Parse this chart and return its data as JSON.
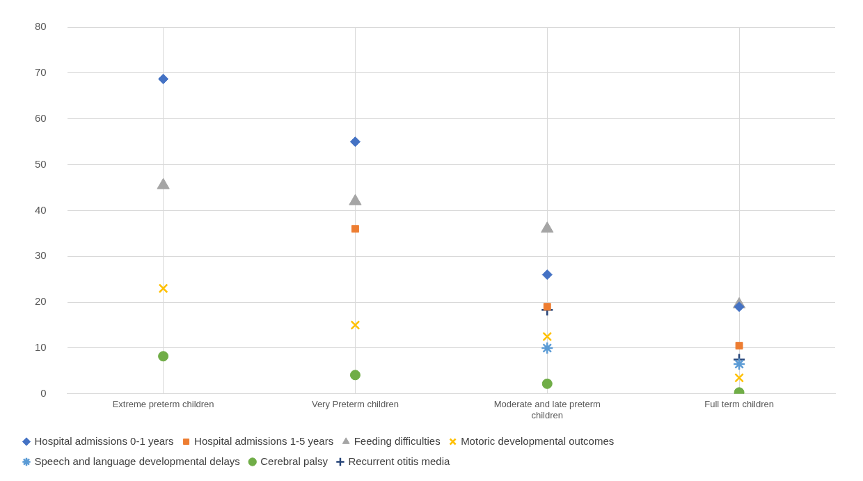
{
  "chart_data": {
    "type": "scatter",
    "categories": [
      "Extreme preterm children",
      "Very Preterm children",
      "Moderate and late preterm children",
      "Full term children"
    ],
    "series": [
      {
        "name": "Hospital admissions 0-1 years",
        "color": "#4472c4",
        "marker": "diamond",
        "values": [
          68.7,
          55,
          26,
          19
        ]
      },
      {
        "name": "Hospital admissions 1-5 years",
        "color": "#ed7d31",
        "marker": "square",
        "values": [
          null,
          36,
          19,
          10.5
        ]
      },
      {
        "name": "Feeding difficulties",
        "color": "#a5a5a5",
        "marker": "triangle",
        "values": [
          45.5,
          42,
          36,
          19.5
        ]
      },
      {
        "name": "Motoric developmental outcomes",
        "color": "#ffc000",
        "marker": "cross",
        "values": [
          23,
          15,
          12.5,
          3.5
        ]
      },
      {
        "name": "Speech and language developmental delays",
        "color": "#5b9bd5",
        "values": [
          null,
          null,
          10,
          6.5
        ]
      },
      {
        "name": "Cerebral palsy",
        "color": "#70ad47",
        "marker": "circle",
        "values": [
          8.2,
          4.1,
          2.2,
          0.3
        ]
      },
      {
        "name": "Recurrent otitis media",
        "color": "#264478",
        "marker": "plus",
        "values": [
          null,
          null,
          18.3,
          7.5
        ]
      }
    ],
    "ylim": [
      0,
      80
    ],
    "yticks": [
      0,
      10,
      20,
      30,
      40,
      50,
      60,
      70,
      80
    ],
    "grid": true,
    "legend": "bottom"
  }
}
